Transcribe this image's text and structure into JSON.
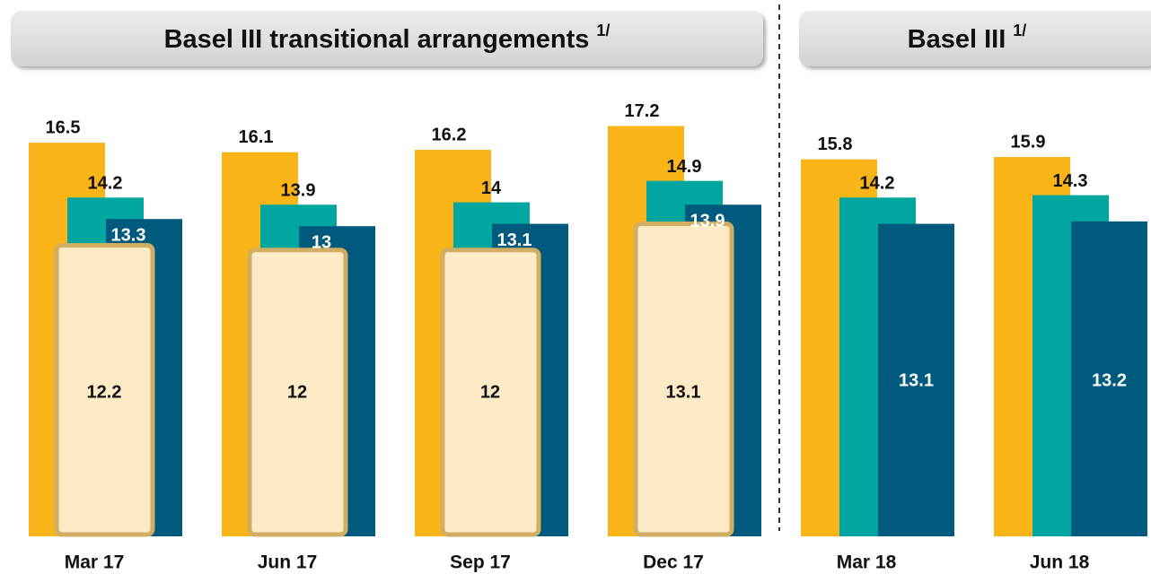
{
  "chart_data": {
    "type": "bar",
    "sections": [
      {
        "title": "Basel III transitional arrangements",
        "note": "1/"
      },
      {
        "title": "Basel III",
        "note": "1/"
      }
    ],
    "categories": [
      "Mar 17",
      "Jun 17",
      "Sep 17",
      "Dec 17",
      "Mar 18",
      "Jun 18"
    ],
    "series": [
      {
        "color": "#F9B418",
        "values": [
          16.5,
          16.1,
          16.2,
          17.2,
          15.8,
          15.9
        ]
      },
      {
        "color": "#00A6A0",
        "values": [
          14.2,
          13.9,
          14.0,
          14.9,
          14.2,
          14.3
        ]
      },
      {
        "color": "#005A7D",
        "values": [
          13.3,
          13.0,
          13.1,
          13.9,
          13.1,
          13.2
        ]
      }
    ],
    "overlay": {
      "color": "#FDEBC8",
      "values": [
        12.2,
        12.0,
        12.0,
        13.1,
        null,
        null
      ]
    }
  }
}
